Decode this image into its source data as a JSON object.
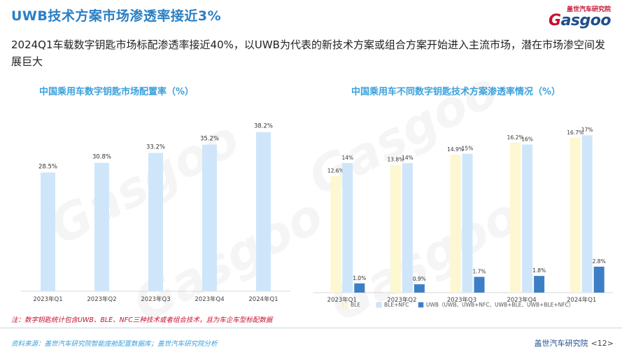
{
  "header": {
    "title": "UWB技术方案市场渗透率接近3%",
    "subtitle": "2024Q1车载数字钥匙市场标配渗透率接近40%，以UWB为代表的新技术方案或组合方案开始进入主流市场，潜在市场渗空间发展巨大"
  },
  "logo": {
    "top_text": "盖世汽车研究院",
    "word_main": "asgoo",
    "word_initial": "G"
  },
  "watermark": {
    "text": "Gasgoo"
  },
  "chart_data": [
    {
      "type": "bar",
      "title": "中国乘用车数字钥匙市场配置率（%）",
      "categories": [
        "2023年Q1",
        "2023年Q2",
        "2023年Q3",
        "2023年Q4",
        "2024年Q1"
      ],
      "values": [
        28.5,
        30.8,
        33.2,
        35.2,
        38.2
      ],
      "value_labels": [
        "28.5%",
        "30.8%",
        "33.2%",
        "35.2%",
        "38.2%"
      ],
      "ylim": [
        0,
        40
      ],
      "color": "#cfe6fa",
      "label_color": "#333333",
      "grid": false
    },
    {
      "type": "bar",
      "title": "中国乘用车不同数字钥匙技术方案渗透率情况（%）",
      "categories": [
        "2023年Q1",
        "2023年Q2",
        "2023年Q3",
        "2023年Q4",
        "2024年Q1"
      ],
      "series": [
        {
          "name": "BLE",
          "values": [
            12.6,
            13.8,
            14.9,
            16.2,
            16.7
          ],
          "labels": [
            "12.6%",
            "13.8%",
            "14.9%",
            "16.2%",
            "16.7%"
          ],
          "color": "#fdf7d2"
        },
        {
          "name": "BLE+NFC",
          "values": [
            14,
            14,
            15,
            16,
            17
          ],
          "labels": [
            "14%",
            "14%",
            "15%",
            "16%",
            "17%"
          ],
          "color": "#cfe6fa"
        },
        {
          "name": "UWB（UWB、UWB+NFC、UWB+BLE、UWB+BLE+NFC）",
          "values": [
            1.0,
            0.9,
            1.7,
            1.8,
            2.8
          ],
          "labels": [
            "1.0%",
            "0.9%",
            "1.7%",
            "1.8%",
            "2.8%"
          ],
          "color": "#3d7fc6"
        }
      ],
      "ylim": [
        0,
        18
      ],
      "legend": "bottom",
      "grid": false
    }
  ],
  "note": "注：数字钥匙统计包含UWB、BLE、NFC三种技术或者组合技术，且为车企车型标配数据",
  "source": "资料来源：盖世汽车研究院智能座舱配置数据库；盖世汽车研究院分析",
  "footer": {
    "org": "盖世汽车研究院",
    "page": "<12>"
  }
}
